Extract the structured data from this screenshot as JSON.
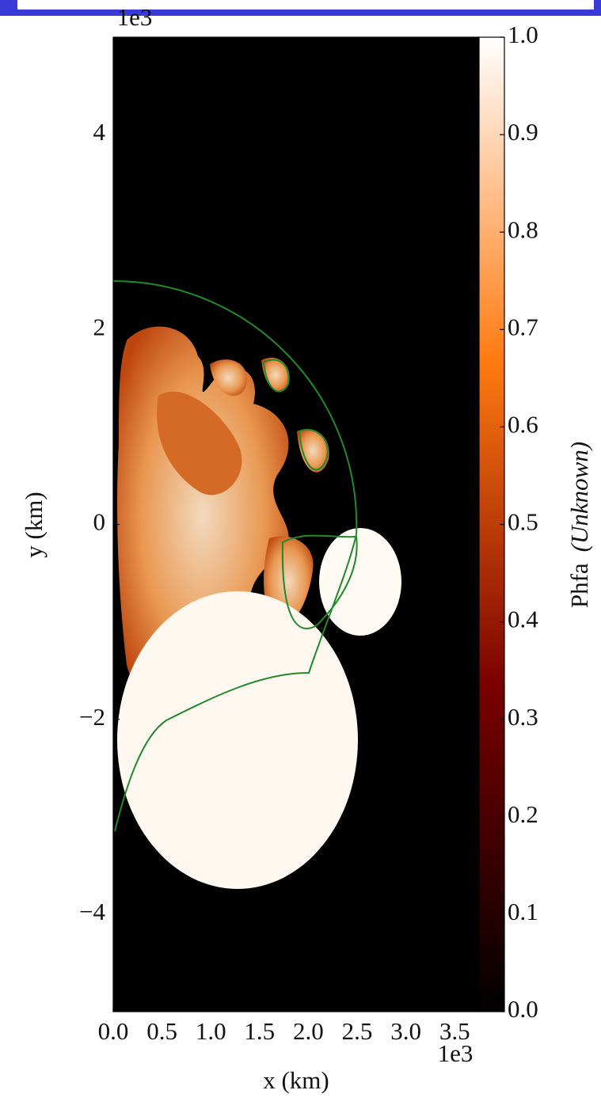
{
  "chart_data": {
    "type": "heatmap",
    "xlabel": "x  (km)",
    "ylabel": "y  (km)",
    "x_multiplier": "1e3",
    "y_multiplier": "1e3",
    "colorbar_label": "Phfa",
    "colorbar_unit": "(Unknown)",
    "xlim": [
      0,
      3.75
    ],
    "ylim": [
      -5,
      5
    ],
    "xticks": [
      {
        "value": 0,
        "label": "0.0"
      },
      {
        "value": 0.5,
        "label": "0.5"
      },
      {
        "value": 1,
        "label": "1.0"
      },
      {
        "value": 1.5,
        "label": "1.5"
      },
      {
        "value": 2,
        "label": "2.0"
      },
      {
        "value": 2.5,
        "label": "2.5"
      },
      {
        "value": 3,
        "label": "3.0"
      },
      {
        "value": 3.5,
        "label": "3.5"
      }
    ],
    "yticks": [
      {
        "value": -4,
        "label": "−4"
      },
      {
        "value": -2,
        "label": "−2"
      },
      0,
      2,
      4
    ],
    "clim": [
      0,
      1
    ],
    "cticks": [
      {
        "value": 0,
        "label": "0.0"
      },
      {
        "value": 0.1,
        "label": "0.1"
      },
      {
        "value": 0.2,
        "label": "0.2"
      },
      {
        "value": 0.3,
        "label": "0.3"
      },
      {
        "value": 0.4,
        "label": "0.4"
      },
      {
        "value": 0.5,
        "label": "0.5"
      },
      {
        "value": 0.6,
        "label": "0.6"
      },
      {
        "value": 0.7,
        "label": "0.7"
      },
      {
        "value": 0.8,
        "label": "0.8"
      },
      {
        "value": 0.9,
        "label": "0.9"
      },
      {
        "value": 1,
        "label": "1.0"
      }
    ],
    "colormap_colors": [
      "#000000",
      "#7a0000",
      "#ff7a10",
      "#ffffff"
    ],
    "contour_color": "#1f8a2a"
  }
}
